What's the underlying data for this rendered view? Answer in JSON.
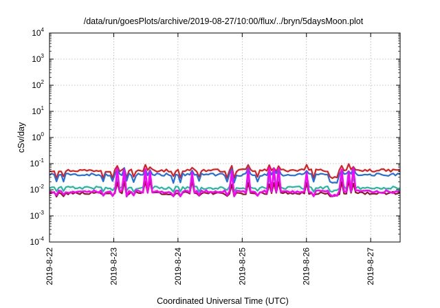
{
  "chart_data": {
    "type": "line",
    "title": "/data/run/goesPlots/archive/2019-08-27/10:00/flux/../bryn/5daysMoon.plot",
    "xlabel": "Coordinated Universal Time (UTC)",
    "ylabel": "cSv/day",
    "yscale": "log",
    "ylim": [
      0.0001,
      10000
    ],
    "xlim": [
      "2019-8-22",
      "2019-8-27 11:00"
    ],
    "x_tick_labels": [
      "2019-8-22",
      "2019-8-23",
      "2019-8-24",
      "2019-8-25",
      "2019-8-26",
      "2019-8-27"
    ],
    "y_ticks": [
      {
        "base": "10",
        "exp": "-4"
      },
      {
        "base": "10",
        "exp": "-3"
      },
      {
        "base": "10",
        "exp": "-2"
      },
      {
        "base": "10",
        "exp": "-1"
      },
      {
        "base": "10",
        "exp": "0"
      },
      {
        "base": "10",
        "exp": "1"
      },
      {
        "base": "10",
        "exp": "2"
      },
      {
        "base": "10",
        "exp": "3"
      },
      {
        "base": "10",
        "exp": "4"
      }
    ],
    "grid": true,
    "series": [
      {
        "color": "#e31a1c",
        "baseline": 0.055,
        "spike_high": 0.085,
        "dip": 0.03,
        "description_of_shape": "upper band, ~0.05-0.07 with sharp dips"
      },
      {
        "color": "#1f6fe0",
        "baseline": 0.038,
        "spike_high": 0.06,
        "dip": 0.02
      },
      {
        "color": "#1abc9c",
        "baseline": 0.012,
        "spike_high": 0.03,
        "dip": 0.009
      },
      {
        "color": "#8b1a1a",
        "baseline": 0.0075,
        "spike_high": 0.02,
        "dip": 0.006
      },
      {
        "color": "#ff00ff",
        "baseline": 0.0085,
        "spike_high": 0.06,
        "dip": 0.006
      }
    ]
  }
}
